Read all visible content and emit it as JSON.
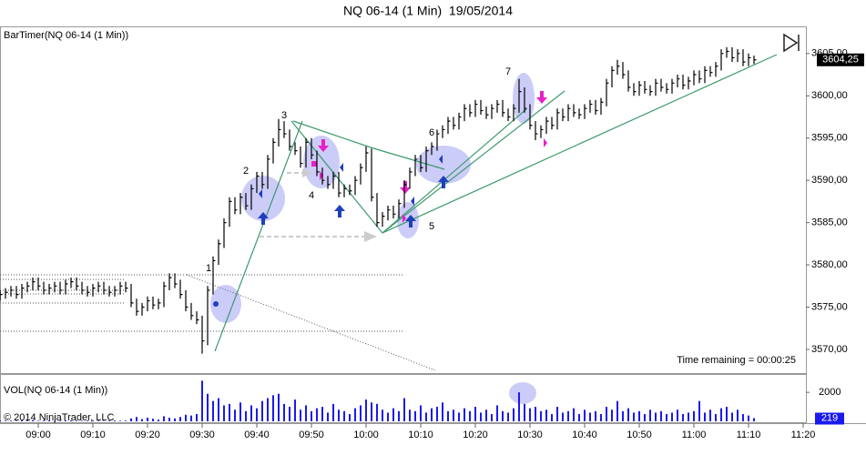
{
  "chart_data": {
    "type": "ohlc",
    "title": "NQ 06-14 (1 Min)  19/05/2014",
    "price_label": "BarTimer(NQ 06-14 (1 Min))",
    "volume_label": "VOL(NQ 06-14 (1 Min))",
    "copyright": "© 2014 NinjaTrader, LLC",
    "time_remaining": "Time remaining = 00:00:25",
    "annotations": [
      "1",
      "2",
      "3",
      "4",
      "5",
      "6",
      "7"
    ],
    "bar_color": "#000000",
    "volume_color": "#1a1aee",
    "x": [
      "08:53",
      "08:54",
      "08:55",
      "08:56",
      "08:57",
      "08:58",
      "08:59",
      "09:00",
      "09:01",
      "09:02",
      "09:03",
      "09:04",
      "09:05",
      "09:06",
      "09:07",
      "09:08",
      "09:09",
      "09:10",
      "09:11",
      "09:12",
      "09:13",
      "09:14",
      "09:15",
      "09:16",
      "09:17",
      "09:18",
      "09:19",
      "09:20",
      "09:21",
      "09:22",
      "09:23",
      "09:24",
      "09:25",
      "09:26",
      "09:27",
      "09:28",
      "09:29",
      "09:30",
      "09:31",
      "09:32",
      "09:33",
      "09:34",
      "09:35",
      "09:36",
      "09:37",
      "09:38",
      "09:39",
      "09:40",
      "09:41",
      "09:42",
      "09:43",
      "09:44",
      "09:45",
      "09:46",
      "09:47",
      "09:48",
      "09:49",
      "09:50",
      "09:51",
      "09:52",
      "09:53",
      "09:54",
      "09:55",
      "09:56",
      "09:57",
      "09:58",
      "09:59",
      "10:00",
      "10:01",
      "10:02",
      "10:03",
      "10:04",
      "10:05",
      "10:06",
      "10:07",
      "10:08",
      "10:09",
      "10:10",
      "10:11",
      "10:12",
      "10:13",
      "10:14",
      "10:15",
      "10:16",
      "10:17",
      "10:18",
      "10:19",
      "10:20",
      "10:21",
      "10:22",
      "10:23",
      "10:24",
      "10:25",
      "10:26",
      "10:27",
      "10:28",
      "10:29",
      "10:30",
      "10:31",
      "10:32",
      "10:33",
      "10:34",
      "10:35",
      "10:36",
      "10:37",
      "10:38",
      "10:39",
      "10:40",
      "10:41",
      "10:42",
      "10:43",
      "10:44",
      "10:45",
      "10:46",
      "10:47",
      "10:48",
      "10:49",
      "10:50",
      "10:51",
      "10:52",
      "10:53",
      "10:54",
      "10:55",
      "10:56",
      "10:57",
      "10:58",
      "10:59",
      "11:00",
      "11:01",
      "11:02",
      "11:03",
      "11:04",
      "11:05",
      "11:06",
      "11:07",
      "11:08",
      "11:09",
      "11:10",
      "11:11"
    ],
    "high": [
      3577,
      3577.25,
      3577.5,
      3577.5,
      3577.75,
      3578,
      3578.5,
      3578.5,
      3578,
      3577.75,
      3578,
      3578,
      3578.25,
      3578.5,
      3578.5,
      3578,
      3577.5,
      3577.75,
      3578,
      3578,
      3577.5,
      3577.5,
      3578,
      3578,
      3577.75,
      3576,
      3575.5,
      3576.25,
      3576.25,
      3576,
      3578,
      3579,
      3579,
      3578.25,
      3577,
      3575.5,
      3574.5,
      3574,
      3577.5,
      3581,
      3583,
      3585.5,
      3588,
      3588,
      3588.5,
      3588.5,
      3589.5,
      3591,
      3591,
      3593,
      3595,
      3597.25,
      3597,
      3596,
      3594.5,
      3594,
      3595,
      3595,
      3593.5,
      3591.5,
      3590.5,
      3591,
      3591,
      3589.5,
      3589.5,
      3590.5,
      3592,
      3594,
      3593.75,
      3588.5,
      3586.25,
      3587,
      3587,
      3587.75,
      3590,
      3591.5,
      3593,
      3593,
      3594,
      3594.5,
      3596,
      3596.5,
      3597.5,
      3597.5,
      3598,
      3599,
      3599,
      3599.5,
      3599.5,
      3598.75,
      3599,
      3599.5,
      3599.5,
      3598.5,
      3599,
      3602,
      3601,
      3599,
      3597,
      3596.5,
      3597.5,
      3597.5,
      3598.5,
      3598.5,
      3599,
      3599,
      3598.5,
      3599,
      3599.5,
      3599.5,
      3599.75,
      3602,
      3603.5,
      3604.25,
      3604,
      3603,
      3601.5,
      3601.75,
      3601.75,
      3601.25,
      3602,
      3602,
      3601.5,
      3602,
      3602.5,
      3602.5,
      3602.25,
      3603,
      3603,
      3603.5,
      3603.5,
      3604,
      3605.5,
      3605.75,
      3605.75,
      3605.5,
      3605.5,
      3605,
      3604.75
    ],
    "low": [
      3575.75,
      3576,
      3576.25,
      3576,
      3576,
      3576.75,
      3577,
      3577,
      3576.5,
      3576.5,
      3576.75,
      3576.5,
      3576.5,
      3577.25,
      3577,
      3576.5,
      3576.25,
      3576.25,
      3576.75,
      3576.5,
      3576.25,
      3576.25,
      3576.5,
      3576.75,
      3575,
      3574,
      3574,
      3574.5,
      3574.75,
      3574.75,
      3575,
      3577,
      3577.25,
      3576,
      3574.5,
      3573.5,
      3573,
      3569.5,
      3570.5,
      3576.5,
      3580,
      3582,
      3584.5,
      3586,
      3586,
      3586.5,
      3586.5,
      3588.5,
      3589,
      3589,
      3592,
      3594,
      3595,
      3593.5,
      3593,
      3591.5,
      3591.5,
      3592.5,
      3590.5,
      3589.5,
      3589,
      3589,
      3588,
      3588,
      3588.25,
      3588.25,
      3589.5,
      3591,
      3587.5,
      3584.5,
      3584.5,
      3585.25,
      3585.5,
      3585.5,
      3586.75,
      3589,
      3590.5,
      3591,
      3591,
      3593,
      3593.5,
      3595,
      3595.5,
      3596,
      3596,
      3597,
      3597.5,
      3597.5,
      3597.75,
      3597.25,
      3597.25,
      3598,
      3597.5,
      3597,
      3597,
      3598,
      3598,
      3596,
      3594.75,
      3595,
      3595.5,
      3596,
      3596,
      3597,
      3597,
      3597.5,
      3597.25,
      3597.25,
      3598,
      3597.75,
      3597.75,
      3598.75,
      3601,
      3602.5,
      3602,
      3600.5,
      3600,
      3600,
      3600.25,
      3600,
      3600,
      3600.5,
      3600.25,
      3600.25,
      3601,
      3600.75,
      3600.75,
      3601.25,
      3601.5,
      3601.5,
      3602.25,
      3602.25,
      3603,
      3604.5,
      3604,
      3604,
      3603.5,
      3603.5,
      3603.75
    ],
    "close": [
      3576.5,
      3576.75,
      3577,
      3576.5,
      3577.25,
      3577.5,
      3578,
      3577.5,
      3577,
      3577.25,
      3577.5,
      3577,
      3577.75,
      3578,
      3577.5,
      3577,
      3576.75,
      3577.25,
      3577.5,
      3577,
      3576.75,
      3577,
      3577.5,
      3577.25,
      3575.5,
      3574.5,
      3575,
      3575.75,
      3575.25,
      3575.5,
      3577.5,
      3578.5,
      3577.75,
      3576.5,
      3575,
      3574,
      3573.5,
      3571,
      3577,
      3580.5,
      3582.5,
      3585,
      3587.5,
      3586.5,
      3588,
      3587,
      3589,
      3590.5,
      3589.5,
      3592.5,
      3594.5,
      3596,
      3595.5,
      3594,
      3593.5,
      3592,
      3594.5,
      3593,
      3591,
      3590,
      3589.5,
      3590.5,
      3588.5,
      3589,
      3588.75,
      3590,
      3591.5,
      3593.25,
      3588,
      3585,
      3585.75,
      3586.5,
      3586,
      3587.25,
      3589.5,
      3591,
      3592.5,
      3591.5,
      3593.5,
      3594,
      3595.5,
      3596,
      3597,
      3596.5,
      3597.5,
      3598.5,
      3598,
      3599,
      3598.25,
      3597.75,
      3598.5,
      3599,
      3598,
      3597.5,
      3598.5,
      3600.5,
      3598.5,
      3596.5,
      3595.5,
      3596,
      3597,
      3596.5,
      3598,
      3597.5,
      3598.5,
      3598,
      3597.75,
      3598.5,
      3599,
      3598.25,
      3599.25,
      3601.5,
      3603,
      3603.5,
      3602.5,
      3601,
      3600.5,
      3601.25,
      3600.75,
      3600.5,
      3601.5,
      3601,
      3600.75,
      3601.5,
      3602,
      3601.25,
      3601.75,
      3602.5,
      3602,
      3603,
      3602.75,
      3603.5,
      3605,
      3605.25,
      3604.5,
      3605,
      3604,
      3604.5,
      3604.25
    ],
    "volume": [
      60,
      40,
      50,
      30,
      70,
      50,
      80,
      40,
      50,
      60,
      30,
      50,
      70,
      60,
      40,
      30,
      50,
      60,
      40,
      30,
      50,
      60,
      40,
      50,
      200,
      300,
      150,
      250,
      180,
      120,
      350,
      250,
      200,
      300,
      450,
      400,
      500,
      2800,
      1900,
      1400,
      1600,
      1100,
      1200,
      800,
      1300,
      700,
      1100,
      900,
      1400,
      1600,
      1800,
      1900,
      1200,
      1000,
      1500,
      800,
      1100,
      700,
      900,
      1000,
      600,
      1200,
      800,
      700,
      500,
      900,
      1100,
      1500,
      1300,
      1200,
      800,
      600,
      900,
      700,
      1600,
      800,
      700,
      1100,
      600,
      900,
      1000,
      1300,
      700,
      800,
      600,
      900,
      700,
      1000,
      600,
      800,
      500,
      1100,
      700,
      600,
      900,
      2000,
      1200,
      900,
      1000,
      700,
      800,
      500,
      1000,
      600,
      700,
      900,
      500,
      800,
      600,
      700,
      500,
      1000,
      800,
      1400,
      700,
      900,
      600,
      700,
      500,
      800,
      600,
      700,
      500,
      600,
      800,
      500,
      600,
      700,
      1400,
      600,
      800,
      500,
      900,
      1000,
      600,
      800,
      500,
      400,
      219
    ],
    "ylim": [
      3567.2,
      3608.1
    ],
    "yticks": [
      {
        "value": 3570,
        "label": "3570,00"
      },
      {
        "value": 3575,
        "label": "3575,00"
      },
      {
        "value": 3580,
        "label": "3580,00"
      },
      {
        "value": 3585,
        "label": "3585,00"
      },
      {
        "value": 3590,
        "label": "3590,00"
      },
      {
        "value": 3595,
        "label": "3595,00"
      },
      {
        "value": 3600,
        "label": "3600,00"
      },
      {
        "value": 3605,
        "label": "3605,00"
      }
    ],
    "last_price": {
      "value": 3604.25,
      "label": "3604,25"
    },
    "y2lim": [
      0,
      3200
    ],
    "y2ticks": [
      2000
    ],
    "last_volume": 219,
    "xticks": [
      "09:00",
      "09:10",
      "09:20",
      "09:30",
      "09:40",
      "09:50",
      "10:00",
      "10:10",
      "10:20",
      "10:30",
      "10:40",
      "10:50",
      "11:00",
      "11:10",
      "11:20"
    ],
    "grid": false
  }
}
